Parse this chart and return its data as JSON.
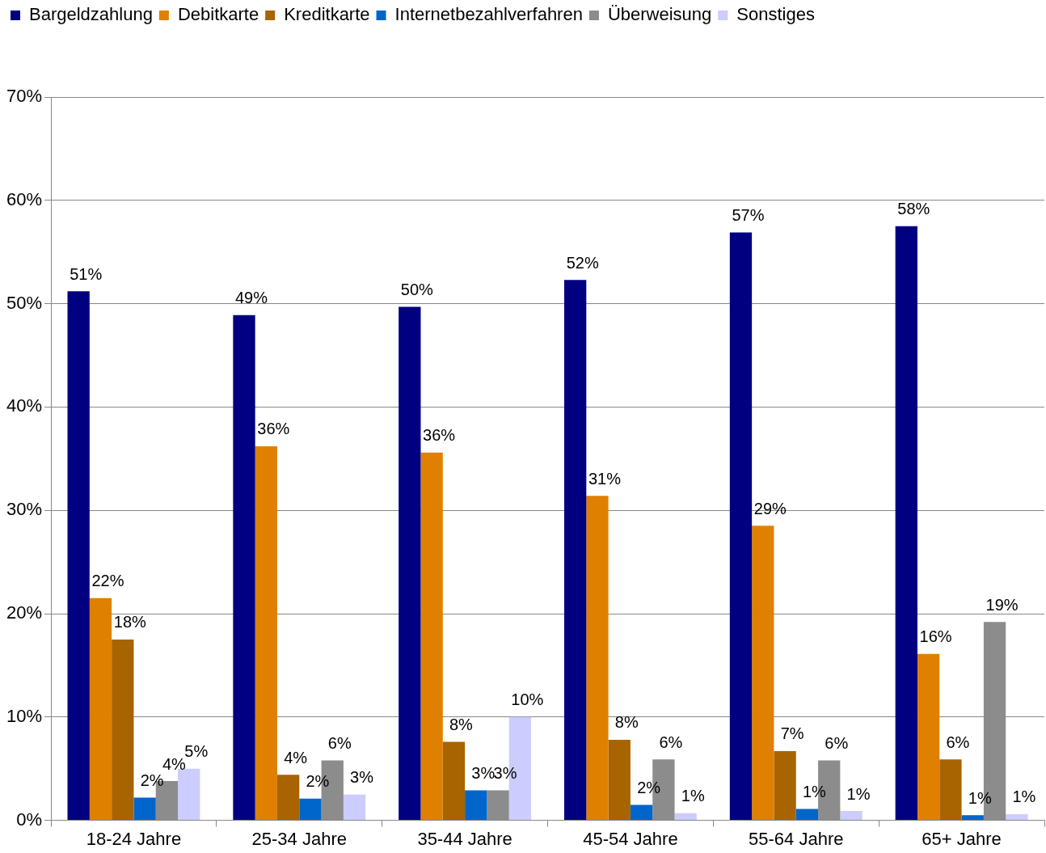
{
  "chart_data": {
    "type": "bar",
    "categories": [
      "18-24 Jahre",
      "25-34 Jahre",
      "35-44 Jahre",
      "45-54 Jahre",
      "55-64 Jahre",
      "65+ Jahre"
    ],
    "series": [
      {
        "name": "Bargeldzahlung",
        "color": "#000080",
        "values": [
          51.2,
          48.9,
          49.7,
          52.3,
          56.9,
          57.5
        ],
        "value_labels": [
          "51%",
          "49%",
          "50%",
          "52%",
          "57%",
          "58%"
        ]
      },
      {
        "name": "Debitkarte",
        "color": "#e08000",
        "values": [
          21.5,
          36.2,
          35.6,
          31.4,
          28.5,
          16.1
        ],
        "value_labels": [
          "22%",
          "36%",
          "36%",
          "31%",
          "29%",
          "16%"
        ]
      },
      {
        "name": "Kreditkarte",
        "color": "#a86400",
        "values": [
          17.5,
          4.4,
          7.6,
          7.8,
          6.7,
          5.9
        ],
        "value_labels": [
          "18%",
          "4%",
          "8%",
          "8%",
          "7%",
          "6%"
        ]
      },
      {
        "name": "Internetbezahlverfahren",
        "color": "#0066cc",
        "values": [
          2.2,
          2.1,
          2.9,
          1.5,
          1.1,
          0.5
        ],
        "value_labels": [
          "2%",
          "2%",
          "3%",
          "2%",
          "1%",
          "1%"
        ]
      },
      {
        "name": "Überweisung",
        "color": "#8c8c8c",
        "values": [
          3.8,
          5.8,
          2.9,
          5.9,
          5.8,
          19.2
        ],
        "value_labels": [
          "4%",
          "6%",
          "3%",
          "6%",
          "6%",
          "19%"
        ]
      },
      {
        "name": "Sonstiges",
        "color": "#ccccff",
        "values": [
          5.0,
          2.5,
          10.0,
          0.7,
          0.9,
          0.6
        ],
        "value_labels": [
          "5%",
          "3%",
          "10%",
          "1%",
          "1%",
          "1%"
        ]
      }
    ],
    "ylim": [
      0,
      70
    ],
    "yticks": [
      {
        "value": 0,
        "label": "0%"
      },
      {
        "value": 10,
        "label": "10%"
      },
      {
        "value": 20,
        "label": "20%"
      },
      {
        "value": 30,
        "label": "30%"
      },
      {
        "value": 40,
        "label": "40%"
      },
      {
        "value": 50,
        "label": "50%"
      },
      {
        "value": 60,
        "label": "60%"
      },
      {
        "value": 70,
        "label": "70%"
      }
    ],
    "grid": "y",
    "legend": "top left"
  }
}
